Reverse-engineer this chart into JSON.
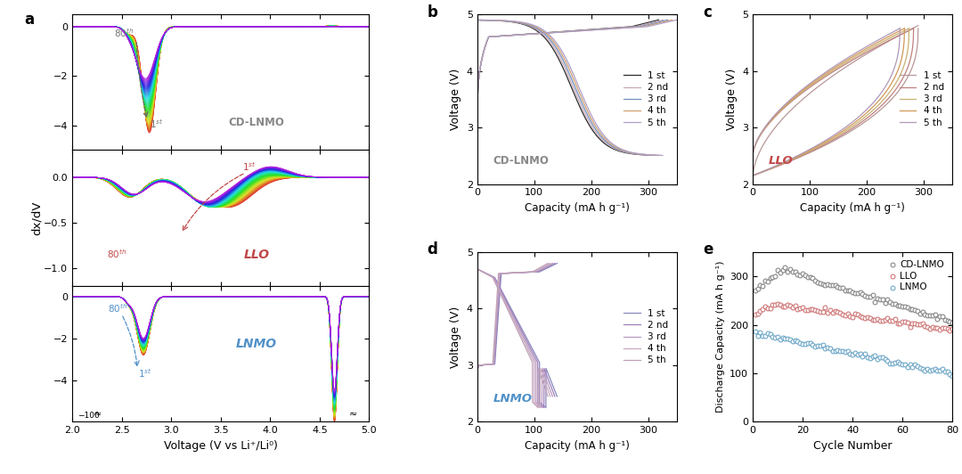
{
  "xlabel_a": "Voltage (V vs Li⁺/Li⁰)",
  "ylabel_a": "dx/dV",
  "xlabel_bcd": "Capacity (mA h g⁻¹)",
  "ylabel_bcd": "Voltage (V)",
  "xlabel_e": "Cycle Number",
  "ylabel_e": "Discharge Capacity (mA h g⁻¹)",
  "legend_cycles": [
    "1 st",
    "2 nd",
    "3 rd",
    "4 th",
    "5 th"
  ],
  "colors_b": [
    "#2a2a2a",
    "#c8a8b8",
    "#7090c0",
    "#d0a070",
    "#b0a0c8"
  ],
  "colors_c": [
    "#b89898",
    "#c08080",
    "#c8b070",
    "#d09858",
    "#b098b8"
  ],
  "colors_d": [
    "#8888c0",
    "#a080b8",
    "#b898c0",
    "#c8a8c0",
    "#c0a0b8"
  ]
}
